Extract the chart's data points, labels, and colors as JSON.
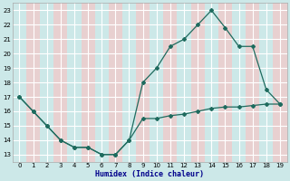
{
  "xlabel": "Humidex (Indice chaleur)",
  "x": [
    0,
    1,
    2,
    3,
    4,
    5,
    6,
    7,
    8,
    9,
    10,
    11,
    12,
    13,
    14,
    15,
    16,
    17,
    18,
    19
  ],
  "line1_y": [
    17,
    16,
    15,
    14,
    13.5,
    13.5,
    13,
    13,
    14,
    15.5,
    15.5,
    15.7,
    15.8,
    16.0,
    16.2,
    16.3,
    16.3,
    16.4,
    16.5,
    16.5
  ],
  "line2_y": [
    17,
    16,
    15,
    14,
    13.5,
    13.5,
    13,
    13,
    14,
    18,
    19,
    20.5,
    21,
    22,
    23,
    21.8,
    20.5,
    20.5,
    17.5,
    16.5
  ],
  "line_color": "#1e6b5e",
  "bg_color": "#cce8e8",
  "grid_color_white": "#e8f4f4",
  "pink_color": "#e8d0d0",
  "ylim": [
    12.5,
    23.5
  ],
  "xlim": [
    -0.5,
    19.5
  ],
  "yticks": [
    13,
    14,
    15,
    16,
    17,
    18,
    19,
    20,
    21,
    22,
    23
  ],
  "xticks": [
    0,
    1,
    2,
    3,
    4,
    5,
    6,
    7,
    8,
    9,
    10,
    11,
    12,
    13,
    14,
    15,
    16,
    17,
    18,
    19
  ]
}
